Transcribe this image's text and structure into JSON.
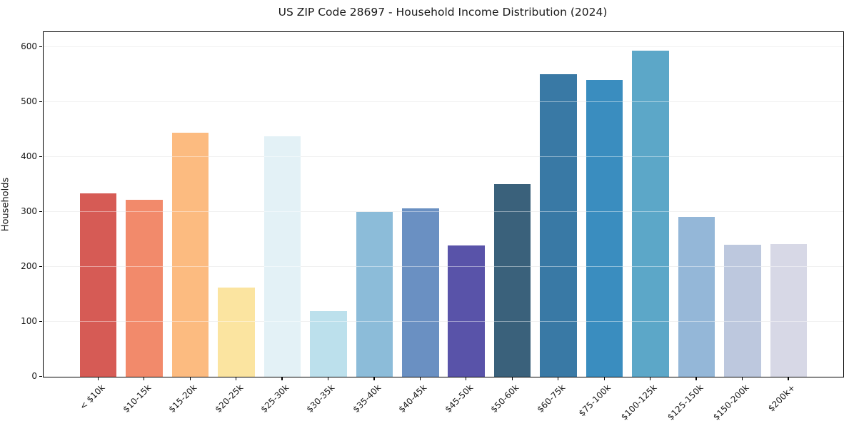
{
  "chart_data": {
    "type": "bar",
    "title": "US ZIP Code 28697 - Household Income Distribution (2024)",
    "xlabel": "",
    "ylabel": "Households",
    "categories": [
      "< $10k",
      "$10-15k",
      "$15-20k",
      "$20-25k",
      "$25-30k",
      "$30-35k",
      "$35-40k",
      "$40-45k",
      "$45-50k",
      "$50-60k",
      "$60-75k",
      "$75-100k",
      "$100-125k",
      "$125-150k",
      "$150-200k",
      "$200k+"
    ],
    "values": [
      334,
      322,
      444,
      162,
      437,
      120,
      300,
      306,
      239,
      350,
      551,
      540,
      593,
      291,
      240,
      241
    ],
    "bar_colors": [
      "#d65b55",
      "#f28a6b",
      "#fcbb80",
      "#fbe4a0",
      "#e3f1f6",
      "#bce0ec",
      "#8cbcd9",
      "#6a90c2",
      "#5953a9",
      "#3a617b",
      "#3979a5",
      "#3a8dbf",
      "#5ca7c8",
      "#94b7d8",
      "#bdc8de",
      "#d7d8e6"
    ],
    "yticks": [
      0,
      100,
      200,
      300,
      400,
      500,
      600
    ],
    "ylim": [
      0,
      627
    ],
    "grid": "horizontal-only",
    "legend": "none",
    "background_color": "#ffffff",
    "spine_color": "#000000",
    "xtick_rotation_deg": 45
  }
}
